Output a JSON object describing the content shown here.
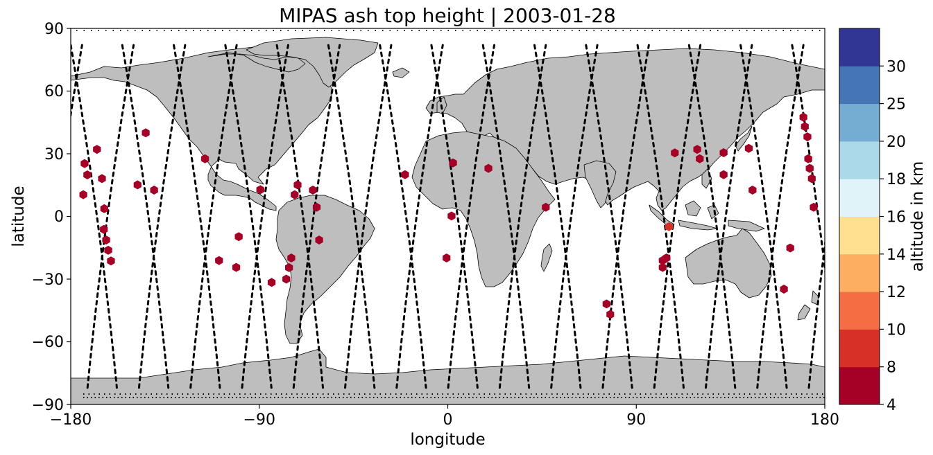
{
  "chart_data": {
    "type": "map-scatter",
    "title": "MIPAS ash top height | 2003-01-28",
    "xlabel": "longitude",
    "ylabel": "latitude",
    "xlim": [
      -180,
      180
    ],
    "ylim": [
      -90,
      90
    ],
    "xticks": [
      -180,
      -90,
      0,
      90,
      180
    ],
    "yticks": [
      -90,
      -60,
      -30,
      0,
      30,
      60,
      90
    ],
    "xtick_labels": [
      "−180",
      "−90",
      "0",
      "90",
      "180"
    ],
    "ytick_labels": [
      "−90",
      "−60",
      "−30",
      "0",
      "30",
      "60",
      "90"
    ],
    "colorbar": {
      "label": "altitude in km",
      "bounds": [
        4,
        8,
        10,
        12,
        14,
        16,
        18,
        20,
        25,
        30
      ],
      "tick_labels": [
        "4",
        "8",
        "10",
        "12",
        "14",
        "16",
        "18",
        "20",
        "25",
        "30"
      ],
      "colors": [
        "#a50026",
        "#d73027",
        "#f46d43",
        "#fdae61",
        "#fee090",
        "#e0f3f8",
        "#abd9e9",
        "#74add1",
        "#4575b4",
        "#313695"
      ]
    },
    "points": [
      [
        -173.4,
        25.3,
        6
      ],
      [
        -172.1,
        19.9,
        6
      ],
      [
        -174.0,
        10.4,
        6
      ],
      [
        -167.5,
        32.1,
        6
      ],
      [
        -165.1,
        18.1,
        6
      ],
      [
        -164.0,
        3.7,
        6
      ],
      [
        -164.2,
        -6.2,
        6
      ],
      [
        -163.1,
        -11.3,
        6
      ],
      [
        -162.1,
        -16.2,
        6
      ],
      [
        -160.8,
        -21.3,
        6
      ],
      [
        -144.2,
        40.0,
        6
      ],
      [
        -148.1,
        15.1,
        6
      ],
      [
        -140.2,
        12.6,
        6
      ],
      [
        -115.9,
        27.6,
        6
      ],
      [
        -109.2,
        -21.1,
        6
      ],
      [
        -101.0,
        -24.4,
        6
      ],
      [
        -99.8,
        -9.7,
        6
      ],
      [
        -89.5,
        12.8,
        6
      ],
      [
        -84.1,
        -31.6,
        6
      ],
      [
        -77.1,
        -30.0,
        6
      ],
      [
        -75.8,
        -24.5,
        6
      ],
      [
        -74.7,
        -19.9,
        6
      ],
      [
        -73.1,
        10.4,
        6
      ],
      [
        -71.7,
        15.1,
        6
      ],
      [
        -64.4,
        12.6,
        6
      ],
      [
        -62.6,
        4.4,
        6
      ],
      [
        -61.4,
        -11.3,
        6
      ],
      [
        -20.4,
        20.0,
        6
      ],
      [
        -0.6,
        -19.9,
        6
      ],
      [
        1.8,
        0.2,
        6
      ],
      [
        2.5,
        25.6,
        6
      ],
      [
        19.4,
        23.0,
        6
      ],
      [
        46.8,
        4.4,
        6
      ],
      [
        75.8,
        -41.9,
        6
      ],
      [
        77.6,
        -46.9,
        6
      ],
      [
        102.6,
        -24.4,
        6
      ],
      [
        102.6,
        -21.1,
        6
      ],
      [
        104.4,
        -19.9,
        6
      ],
      [
        105.6,
        -4.9,
        9
      ],
      [
        108.4,
        30.4,
        6
      ],
      [
        119.1,
        32.1,
        6
      ],
      [
        120.3,
        27.6,
        6
      ],
      [
        131.7,
        30.5,
        6
      ],
      [
        131.7,
        20.0,
        6
      ],
      [
        143.7,
        32.6,
        6
      ],
      [
        145.5,
        12.6,
        6
      ],
      [
        163.5,
        -15.1,
        6
      ],
      [
        160.5,
        -34.8,
        6
      ],
      [
        169.8,
        47.5,
        6
      ],
      [
        170.5,
        43.0,
        6
      ],
      [
        171.7,
        38.1,
        6
      ],
      [
        172.1,
        27.6,
        6
      ],
      [
        172.8,
        23.0,
        6
      ],
      [
        173.8,
        18.1,
        6
      ],
      [
        174.7,
        4.4,
        6
      ]
    ]
  },
  "map": {
    "land_color": "#bebebe",
    "coast_color": "#000000",
    "track_color": "#000000",
    "marker_shape": "hexagon"
  }
}
